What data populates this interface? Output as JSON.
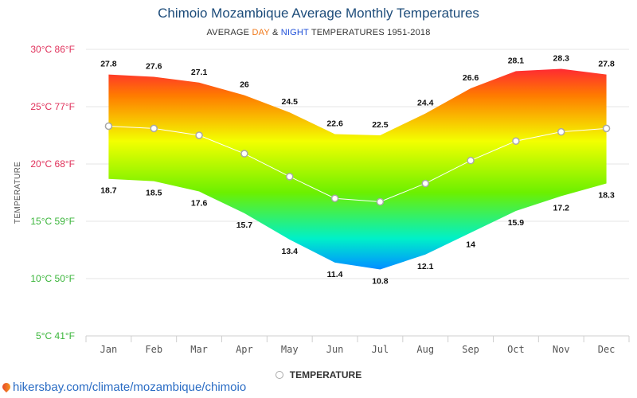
{
  "header": {
    "title": "Chimoio Mozambique Average Monthly Temperatures",
    "subtitle_pre": "AVERAGE ",
    "subtitle_day": "DAY",
    "subtitle_mid": " & ",
    "subtitle_night": "NIGHT",
    "subtitle_post": " TEMPERATURES 1951-2018"
  },
  "legend": {
    "label": "TEMPERATURE"
  },
  "footer": {
    "url": "hikersbay.com/climate/mozambique/chimoio"
  },
  "colors": {
    "title": "#1d4c7a",
    "day": "#f07818",
    "night": "#1e4fd8",
    "link": "#2a6cc4"
  },
  "chart_data": {
    "type": "area",
    "title": "Chimoio Mozambique Average Monthly Temperatures",
    "ylabel": "TEMPERATURE",
    "categories": [
      "Jan",
      "Feb",
      "Mar",
      "Apr",
      "May",
      "Jun",
      "Jul",
      "Aug",
      "Sep",
      "Oct",
      "Nov",
      "Dec"
    ],
    "ylim": [
      5,
      30
    ],
    "yticks": [
      {
        "c": 30,
        "label": "30°C 86°F",
        "color": "#e0305a"
      },
      {
        "c": 25,
        "label": "25°C 77°F",
        "color": "#e0305a"
      },
      {
        "c": 20,
        "label": "20°C 68°F",
        "color": "#e0305a"
      },
      {
        "c": 15,
        "label": "15°C 59°F",
        "color": "#3ab53a"
      },
      {
        "c": 10,
        "label": "10°C 50°F",
        "color": "#3ab53a"
      },
      {
        "c": 5,
        "label": "5°C 41°F",
        "color": "#3ab53a"
      }
    ],
    "series": [
      {
        "name": "DAY",
        "values": [
          27.8,
          27.6,
          27.1,
          26,
          24.5,
          22.6,
          22.5,
          24.4,
          26.6,
          28.1,
          28.3,
          27.8
        ]
      },
      {
        "name": "NIGHT",
        "values": [
          18.7,
          18.5,
          17.6,
          15.7,
          13.4,
          11.4,
          10.8,
          12.1,
          14,
          15.9,
          17.2,
          18.3
        ]
      },
      {
        "name": "TEMPERATURE",
        "values": [
          23.3,
          23.1,
          22.5,
          20.9,
          18.9,
          17.0,
          16.7,
          18.3,
          20.3,
          22.0,
          22.8,
          23.1
        ]
      }
    ],
    "grid": true,
    "legend_position": "bottom-center"
  }
}
